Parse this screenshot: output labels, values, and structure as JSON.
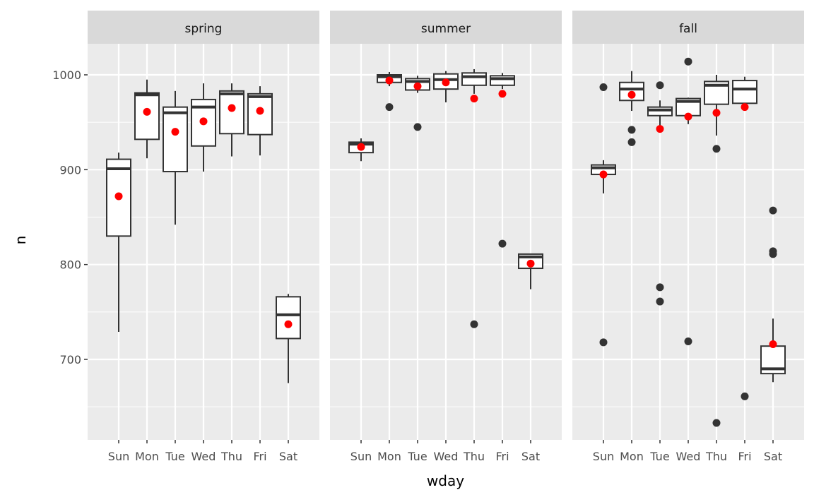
{
  "chart_data": {
    "type": "box",
    "xlabel": "wday",
    "ylabel": "n",
    "categories": [
      "Sun",
      "Mon",
      "Tue",
      "Wed",
      "Thu",
      "Fri",
      "Sat"
    ],
    "y_ticks": [
      700,
      800,
      900,
      1000
    ],
    "ylim": [
      613,
      1030
    ],
    "grid": true,
    "legend": "none",
    "colors": {
      "panel_bg": "#ebebeb",
      "strip_bg": "#d9d9d9",
      "grid": "#ffffff",
      "box_fill": "#ffffff",
      "box_line": "#333333",
      "outlier": "#333333",
      "mean_point": "#ff0000"
    },
    "facets": [
      {
        "label": "spring",
        "boxes": [
          {
            "day": "Sun",
            "low": 729,
            "q1": 830,
            "median": 901,
            "q3": 911,
            "high": 918,
            "mean": 872,
            "outliers": []
          },
          {
            "day": "Mon",
            "low": 912,
            "q1": 932,
            "median": 979,
            "q3": 981,
            "high": 995,
            "mean": 961,
            "outliers": []
          },
          {
            "day": "Tue",
            "low": 842,
            "q1": 898,
            "median": 960,
            "q3": 966,
            "high": 983,
            "mean": 940,
            "outliers": []
          },
          {
            "day": "Wed",
            "low": 898,
            "q1": 925,
            "median": 966,
            "q3": 974,
            "high": 991,
            "mean": 951,
            "outliers": []
          },
          {
            "day": "Thu",
            "low": 914,
            "q1": 938,
            "median": 980,
            "q3": 983,
            "high": 991,
            "mean": 965,
            "outliers": []
          },
          {
            "day": "Fri",
            "low": 915,
            "q1": 937,
            "median": 977,
            "q3": 980,
            "high": 988,
            "mean": 962,
            "outliers": []
          },
          {
            "day": "Sat",
            "low": 675,
            "q1": 722,
            "median": 747,
            "q3": 766,
            "high": 769,
            "mean": 737,
            "outliers": []
          }
        ]
      },
      {
        "label": "summer",
        "boxes": [
          {
            "day": "Sun",
            "low": 909,
            "q1": 918,
            "median": 927,
            "q3": 929,
            "high": 933,
            "mean": 924,
            "outliers": []
          },
          {
            "day": "Mon",
            "low": 988,
            "q1": 992,
            "median": 998,
            "q3": 1000,
            "high": 1003,
            "mean": 994,
            "outliers": [
              966
            ]
          },
          {
            "day": "Tue",
            "low": 981,
            "q1": 984,
            "median": 993,
            "q3": 996,
            "high": 999,
            "mean": 988,
            "outliers": [
              945
            ]
          },
          {
            "day": "Wed",
            "low": 971,
            "q1": 985,
            "median": 995,
            "q3": 1001,
            "high": 1004,
            "mean": 992,
            "outliers": []
          },
          {
            "day": "Thu",
            "low": 980,
            "q1": 989,
            "median": 998,
            "q3": 1002,
            "high": 1006,
            "mean": 975,
            "outliers": [
              737
            ]
          },
          {
            "day": "Fri",
            "low": 985,
            "q1": 989,
            "median": 996,
            "q3": 999,
            "high": 1002,
            "mean": 980,
            "outliers": [
              822
            ]
          },
          {
            "day": "Sat",
            "low": 774,
            "q1": 796,
            "median": 808,
            "q3": 811,
            "high": 811,
            "mean": 801,
            "outliers": []
          }
        ]
      },
      {
        "label": "fall",
        "boxes": [
          {
            "day": "Sun",
            "low": 875,
            "q1": 895,
            "median": 902,
            "q3": 905,
            "high": 910,
            "mean": 895,
            "outliers": [
              987,
              718
            ]
          },
          {
            "day": "Mon",
            "low": 962,
            "q1": 973,
            "median": 985,
            "q3": 992,
            "high": 1004,
            "mean": 979,
            "outliers": [
              942,
              929
            ]
          },
          {
            "day": "Tue",
            "low": 943,
            "q1": 957,
            "median": 963,
            "q3": 966,
            "high": 973,
            "mean": 943,
            "outliers": [
              989,
              776,
              761
            ]
          },
          {
            "day": "Wed",
            "low": 948,
            "q1": 957,
            "median": 972,
            "q3": 975,
            "high": 976,
            "mean": 956,
            "outliers": [
              1014,
              719
            ]
          },
          {
            "day": "Thu",
            "low": 936,
            "q1": 969,
            "median": 989,
            "q3": 993,
            "high": 1000,
            "mean": 960,
            "outliers": [
              922,
              633
            ]
          },
          {
            "day": "Fri",
            "low": 967,
            "q1": 970,
            "median": 985,
            "q3": 994,
            "high": 998,
            "mean": 966,
            "outliers": [
              661
            ]
          },
          {
            "day": "Sat",
            "low": 676,
            "q1": 685,
            "median": 690,
            "q3": 714,
            "high": 743,
            "mean": 716,
            "outliers": [
              857,
              814,
              811
            ]
          }
        ]
      }
    ]
  }
}
